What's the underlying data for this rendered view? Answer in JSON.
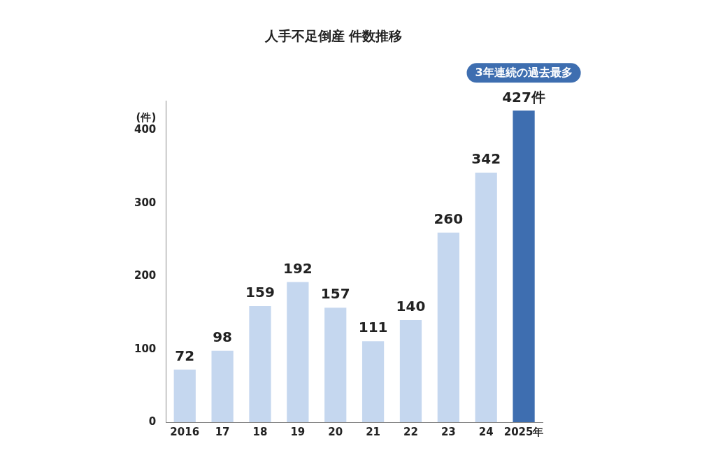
{
  "chart_data": {
    "type": "bar",
    "title": "人手不足倒産 件数推移",
    "ylabel": "(件)",
    "categories": [
      "2016",
      "17",
      "18",
      "19",
      "20",
      "21",
      "22",
      "23",
      "24",
      "2025年"
    ],
    "values": [
      72,
      98,
      159,
      192,
      157,
      111,
      140,
      260,
      342,
      427
    ],
    "colors": [
      "#c5d7ef",
      "#c5d7ef",
      "#c5d7ef",
      "#c5d7ef",
      "#c5d7ef",
      "#c5d7ef",
      "#c5d7ef",
      "#c5d7ef",
      "#c5d7ef",
      "#3e6eb0"
    ],
    "value_labels": [
      "72",
      "98",
      "159",
      "192",
      "157",
      "111",
      "140",
      "260",
      "342",
      "427件"
    ],
    "annotations": [
      "3年連続の過去最多"
    ],
    "ylim": [
      0,
      440
    ],
    "yticks": [
      0,
      100,
      200,
      300,
      400
    ],
    "grid": false,
    "legend": false
  }
}
